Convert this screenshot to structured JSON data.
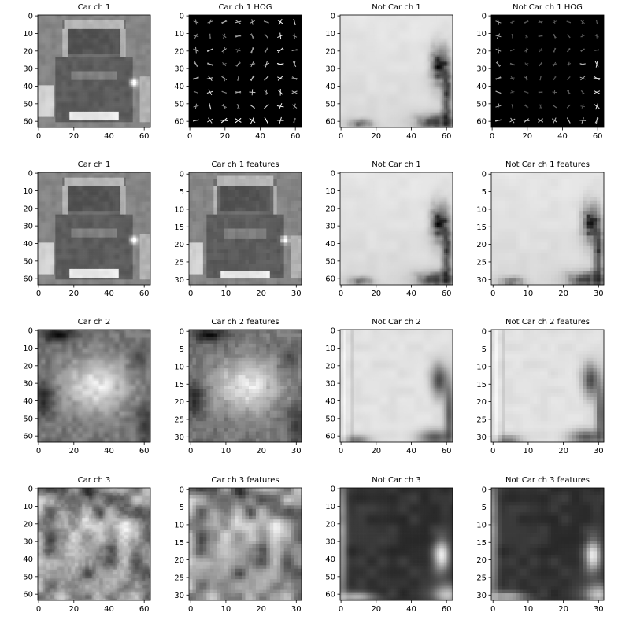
{
  "figure": {
    "rows": [
      [
        {
          "title": "Car ch 1",
          "size": 64,
          "kind": "car1",
          "xticks": [
            0,
            20,
            40,
            60
          ],
          "yticks": [
            0,
            10,
            20,
            30,
            40,
            50,
            60
          ]
        },
        {
          "title": "Car ch 1 HOG",
          "size": 64,
          "kind": "hog_car",
          "xticks": [
            0,
            20,
            40,
            60
          ],
          "yticks": [
            0,
            10,
            20,
            30,
            40,
            50,
            60
          ]
        },
        {
          "title": "Not Car ch 1",
          "size": 64,
          "kind": "notcar1",
          "xticks": [
            0,
            20,
            40,
            60
          ],
          "yticks": [
            0,
            10,
            20,
            30,
            40,
            50,
            60
          ]
        },
        {
          "title": "Not Car ch 1 HOG",
          "size": 64,
          "kind": "hog_notcar",
          "xticks": [
            0,
            20,
            40,
            60
          ],
          "yticks": [
            0,
            10,
            20,
            30,
            40,
            50,
            60
          ]
        }
      ],
      [
        {
          "title": "Car ch 1",
          "size": 64,
          "kind": "car1",
          "xticks": [
            0,
            20,
            40,
            60
          ],
          "yticks": [
            0,
            10,
            20,
            30,
            40,
            50,
            60
          ]
        },
        {
          "title": "Car ch 1 features",
          "size": 32,
          "kind": "car1",
          "xticks": [
            0,
            10,
            20,
            30
          ],
          "yticks": [
            0,
            5,
            10,
            15,
            20,
            25,
            30
          ]
        },
        {
          "title": "Not Car ch 1",
          "size": 64,
          "kind": "notcar1",
          "xticks": [
            0,
            20,
            40,
            60
          ],
          "yticks": [
            0,
            10,
            20,
            30,
            40,
            50,
            60
          ]
        },
        {
          "title": "Not Car ch 1 features",
          "size": 32,
          "kind": "notcar1",
          "xticks": [
            0,
            10,
            20,
            30
          ],
          "yticks": [
            0,
            5,
            10,
            15,
            20,
            25,
            30
          ]
        }
      ],
      [
        {
          "title": "Car ch 2",
          "size": 64,
          "kind": "car2",
          "xticks": [
            0,
            20,
            40,
            60
          ],
          "yticks": [
            0,
            10,
            20,
            30,
            40,
            50,
            60
          ]
        },
        {
          "title": "Car ch 2 features",
          "size": 32,
          "kind": "car2",
          "xticks": [
            0,
            10,
            20,
            30
          ],
          "yticks": [
            0,
            5,
            10,
            15,
            20,
            25,
            30
          ]
        },
        {
          "title": "Not Car ch 2",
          "size": 64,
          "kind": "notcar2",
          "xticks": [
            0,
            20,
            40,
            60
          ],
          "yticks": [
            0,
            10,
            20,
            30,
            40,
            50,
            60
          ]
        },
        {
          "title": "Not Car ch 2 features",
          "size": 32,
          "kind": "notcar2",
          "xticks": [
            0,
            10,
            20,
            30
          ],
          "yticks": [
            0,
            5,
            10,
            15,
            20,
            25,
            30
          ]
        }
      ],
      [
        {
          "title": "Car ch 3",
          "size": 64,
          "kind": "car3",
          "xticks": [
            0,
            20,
            40,
            60
          ],
          "yticks": [
            0,
            10,
            20,
            30,
            40,
            50,
            60
          ]
        },
        {
          "title": "Car ch 3 features",
          "size": 32,
          "kind": "car3",
          "xticks": [
            0,
            10,
            20,
            30
          ],
          "yticks": [
            0,
            5,
            10,
            15,
            20,
            25,
            30
          ]
        },
        {
          "title": "Not Car ch 3",
          "size": 64,
          "kind": "notcar3",
          "xticks": [
            0,
            20,
            40,
            60
          ],
          "yticks": [
            0,
            10,
            20,
            30,
            40,
            50,
            60
          ]
        },
        {
          "title": "Not Car ch 3 features",
          "size": 32,
          "kind": "notcar3",
          "xticks": [
            0,
            10,
            20,
            30
          ],
          "yticks": [
            0,
            5,
            10,
            15,
            20,
            25,
            30
          ]
        }
      ]
    ]
  },
  "chart_data": {
    "type": "heatmap",
    "colormap": "gray",
    "grid": false,
    "layout": "4x4 image grid"
  }
}
